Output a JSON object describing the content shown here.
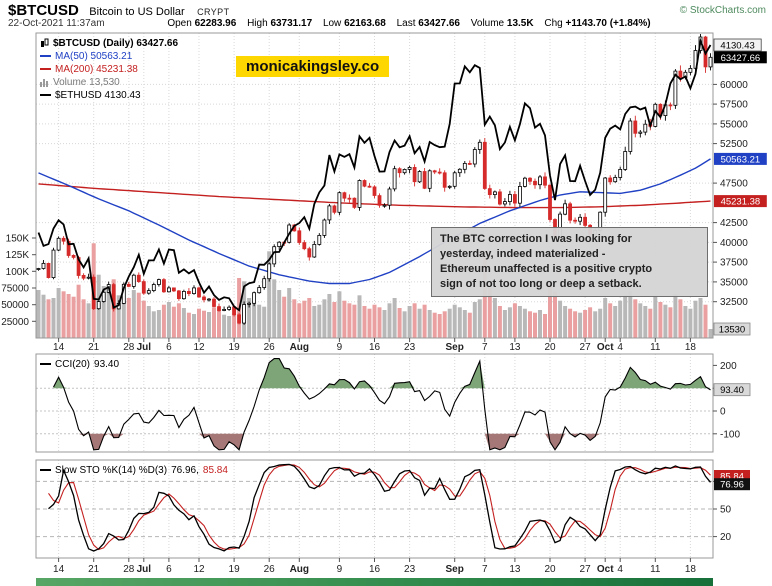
{
  "header": {
    "symbol": "$BTCUSD",
    "name": "Bitcoin to US Dollar",
    "exchange": "CRYPT",
    "copyright": "© StockCharts.com",
    "datetime": "22-Oct-2021 11:37am",
    "quote": {
      "open_label": "Open",
      "open": "62283.96",
      "high_label": "High",
      "high": "63731.17",
      "low_label": "Low",
      "low": "62163.68",
      "last_label": "Last",
      "last": "63427.66",
      "volume_label": "Volume",
      "volume": "13.5K",
      "chg_label": "Chg",
      "chg": "+1143.70 (+1.84%)"
    }
  },
  "watermark": "monicakingsley.co",
  "legend": {
    "main": [
      {
        "icon": "candlestick-icon",
        "label": "$BTCUSD (Daily) 63427.66"
      },
      {
        "icon": "line-icon",
        "label": "MA(50) 50563.21"
      },
      {
        "icon": "line-icon",
        "label": "MA(200) 45231.38"
      },
      {
        "icon": "volume-icon",
        "label": "Volume 13,530"
      },
      {
        "icon": "line-icon",
        "label": "$ETHUSD 4130.43"
      }
    ],
    "cci": {
      "label": "CCI(20)",
      "value": "93.40"
    },
    "sto": {
      "label": "Slow STO %K(14) %D(3)",
      "k": "76.96,",
      "d": "85.84"
    }
  },
  "annotation": {
    "line1": "The BTC correction I was looking for",
    "line2": "yesterday, indeed materialized -",
    "line3": "Ethereum unaffected is a positive crypto",
    "line4": "sign of not too long or deep a setback."
  },
  "chart_data": {
    "type": "candlestick",
    "title": "$BTCUSD (Daily) with MA(50), MA(200), Volume, $ETHUSD overlay, CCI(20), Slow STO %K(14) %D(3)",
    "price_axis": {
      "ticks": [
        "60000",
        "57500",
        "55000",
        "52500",
        "47500",
        "42500",
        "40000",
        "37500",
        "35000",
        "32500"
      ],
      "tick_values": [
        60000,
        57500,
        55000,
        52500,
        47500,
        42500,
        40000,
        37500,
        35000,
        32500
      ]
    },
    "volume_axis": {
      "ticks": [
        "150K",
        "125K",
        "100K",
        "75000",
        "50000",
        "25000"
      ],
      "tick_values": [
        150000,
        125000,
        100000,
        75000,
        50000,
        25000
      ]
    },
    "x_labels": [
      {
        "i": 4,
        "t": "14"
      },
      {
        "i": 11,
        "t": "21"
      },
      {
        "i": 18,
        "t": "28"
      },
      {
        "i": 21,
        "t": "Jul",
        "m": true
      },
      {
        "i": 26,
        "t": "6"
      },
      {
        "i": 32,
        "t": "12"
      },
      {
        "i": 39,
        "t": "19"
      },
      {
        "i": 46,
        "t": "26"
      },
      {
        "i": 52,
        "t": "Aug",
        "m": true
      },
      {
        "i": 60,
        "t": "9"
      },
      {
        "i": 67,
        "t": "16"
      },
      {
        "i": 74,
        "t": "23"
      },
      {
        "i": 83,
        "t": "Sep",
        "m": true
      },
      {
        "i": 89,
        "t": "7"
      },
      {
        "i": 95,
        "t": "13"
      },
      {
        "i": 102,
        "t": "20"
      },
      {
        "i": 109,
        "t": "27"
      },
      {
        "i": 113,
        "t": "Oct",
        "m": true
      },
      {
        "i": 116,
        "t": "4"
      },
      {
        "i": 123,
        "t": "11"
      },
      {
        "i": 130,
        "t": "18"
      }
    ],
    "btc_close": [
      36690,
      37338,
      35546,
      39020,
      40516,
      40144,
      38349,
      38092,
      35819,
      35470,
      35600,
      31608,
      32509,
      33678,
      34663,
      31584,
      32283,
      34700,
      34434,
      35847,
      35041,
      33572,
      33897,
      34668,
      35287,
      33746,
      34235,
      33855,
      32877,
      33798,
      33520,
      34240,
      33086,
      32729,
      32820,
      31880,
      31383,
      31520,
      31796,
      30839,
      29790,
      32144,
      32287,
      33634,
      34290,
      35400,
      37276,
      39457,
      40019,
      40016,
      42206,
      41461,
      39974,
      39201,
      38152,
      39747,
      40888,
      42836,
      44614,
      43804,
      46284,
      45594,
      45588,
      44428,
      47833,
      47112,
      47019,
      45927,
      44695,
      44705,
      46760,
      49322,
      48821,
      49239,
      49488,
      47674,
      48973,
      46843,
      49056,
      48902,
      48806,
      46976,
      47101,
      48810,
      49246,
      49999,
      49915,
      51756,
      52663,
      46811,
      46048,
      46395,
      44851,
      45161,
      46057,
      44963,
      47092,
      48130,
      47737,
      47299,
      48292,
      47240,
      42901,
      40693,
      43575,
      44888,
      42810,
      42687,
      43178,
      42157,
      41041,
      41520,
      43824,
      48155,
      47680,
      48222,
      49243,
      51505,
      55364,
      53805,
      53955,
      54955,
      54687,
      57482,
      56041,
      57401,
      57347,
      61672,
      60875,
      61528,
      62026,
      64283,
      65993,
      62212,
      63427.66
    ],
    "eth_close": [
      2472,
      2354,
      2370,
      2508,
      2581,
      2543,
      2368,
      2373,
      2234,
      2164,
      2244,
      1886,
      1880,
      1968,
      1989,
      1809,
      1830,
      1981,
      2084,
      2166,
      2275,
      2107,
      2226,
      2226,
      2322,
      2198,
      2322,
      2316,
      2116,
      2146,
      2111,
      2140,
      2031,
      1940,
      1995,
      1919,
      1877,
      1900,
      1891,
      1818,
      1786,
      1996,
      2024,
      2034,
      2189,
      2187,
      2231,
      2299,
      2301,
      2383,
      2462,
      2531,
      2556,
      2608,
      2506,
      2725,
      2827,
      2888,
      3158,
      3012,
      3163,
      3141,
      3165,
      3047,
      3323,
      3266,
      3310,
      3149,
      3011,
      3013,
      3184,
      3286,
      3226,
      3241,
      3324,
      3174,
      3229,
      3100,
      3273,
      3245,
      3227,
      3231,
      3433,
      3790,
      3791,
      3941,
      3889,
      3952,
      3928,
      3427,
      3497,
      3420,
      3210,
      3268,
      3406,
      3288,
      3430,
      3614,
      3572,
      3400,
      3434,
      3331,
      2977,
      2759,
      3077,
      3155,
      2928,
      2926,
      3062,
      2928,
      2804,
      2851,
      3001,
      3310,
      3390,
      3418,
      3384,
      3520,
      3580,
      3586,
      3560,
      3577,
      3416,
      3546,
      3493,
      3605,
      3790,
      3868,
      3827,
      3852,
      3748,
      3875,
      4167,
      4054,
      4130.43
    ],
    "volume": [
      72000,
      65000,
      58000,
      60000,
      75000,
      70000,
      66000,
      62000,
      80000,
      58000,
      52000,
      142000,
      95000,
      78000,
      70000,
      88000,
      64000,
      55000,
      60000,
      72000,
      68000,
      56000,
      48000,
      40000,
      42000,
      50000,
      54000,
      47000,
      52000,
      45000,
      38000,
      36000,
      44000,
      41000,
      39000,
      46000,
      43000,
      35000,
      33000,
      48000,
      90000,
      85000,
      60000,
      55000,
      50000,
      47000,
      130000,
      88000,
      72000,
      62000,
      75000,
      58000,
      52000,
      56000,
      60000,
      48000,
      50000,
      58000,
      66000,
      54000,
      70000,
      56000,
      52000,
      50000,
      64000,
      48000,
      44000,
      50000,
      46000,
      42000,
      52000,
      60000,
      45000,
      40000,
      48000,
      52000,
      44000,
      50000,
      42000,
      38000,
      36000,
      40000,
      44000,
      50000,
      46000,
      42000,
      38000,
      54000,
      58000,
      120000,
      75000,
      60000,
      48000,
      42000,
      46000,
      52000,
      48000,
      44000,
      40000,
      38000,
      42000,
      36000,
      82000,
      70000,
      56000,
      48000,
      44000,
      40000,
      38000,
      42000,
      46000,
      40000,
      44000,
      60000,
      52000,
      48000,
      56000,
      64000,
      70000,
      58000,
      52000,
      48000,
      44000,
      62000,
      54000,
      50000,
      46000,
      66000,
      58000,
      48000,
      44000,
      56000,
      60000,
      50000,
      13530
    ],
    "ma50_anchors": [
      [
        0,
        48800
      ],
      [
        6,
        47200
      ],
      [
        12,
        45500
      ],
      [
        18,
        44000
      ],
      [
        24,
        42200
      ],
      [
        30,
        40300
      ],
      [
        36,
        38600
      ],
      [
        42,
        37000
      ],
      [
        48,
        35900
      ],
      [
        54,
        35100
      ],
      [
        58,
        34800
      ],
      [
        62,
        34800
      ],
      [
        66,
        35300
      ],
      [
        70,
        36200
      ],
      [
        76,
        38200
      ],
      [
        82,
        40400
      ],
      [
        88,
        42400
      ],
      [
        94,
        44000
      ],
      [
        100,
        45300
      ],
      [
        104,
        46000
      ],
      [
        108,
        46400
      ],
      [
        112,
        46300
      ],
      [
        116,
        46200
      ],
      [
        120,
        46600
      ],
      [
        124,
        47400
      ],
      [
        128,
        48500
      ],
      [
        131,
        49400
      ],
      [
        134,
        50563.21
      ]
    ],
    "ma200_anchors": [
      [
        0,
        47400
      ],
      [
        12,
        46800
      ],
      [
        24,
        46300
      ],
      [
        36,
        45800
      ],
      [
        48,
        45400
      ],
      [
        60,
        45000
      ],
      [
        72,
        44700
      ],
      [
        84,
        44500
      ],
      [
        96,
        44400
      ],
      [
        104,
        44400
      ],
      [
        112,
        44500
      ],
      [
        120,
        44700
      ],
      [
        127,
        44950
      ],
      [
        134,
        45231.38
      ]
    ],
    "price_labels": {
      "eth_last": "4130.43",
      "btc_last": "63427.66",
      "ma50": "50563.21",
      "ma200": "45231.38",
      "volume_last": "13530"
    },
    "cci": {
      "period": 20,
      "last": 93.4,
      "label": "93.40",
      "ticks": [
        "200",
        "100",
        "0",
        "-100"
      ],
      "tick_values": [
        200,
        100,
        0,
        -100
      ],
      "overbought": 100,
      "oversold": -100
    },
    "sto": {
      "k_last": 76.96,
      "d_last": 85.84,
      "k_label": "76.96",
      "d_label": "85.84",
      "ticks": [
        "80",
        "50",
        "20"
      ],
      "tick_values": [
        80,
        50,
        20
      ]
    },
    "colors": {
      "up": "#000000",
      "down": "#d62b2b",
      "ma50": "#2041c4",
      "ma200": "#c42020",
      "eth": "#000000",
      "vol_up": "#b8b8b8",
      "vol_down": "#eaa0a0",
      "cci_fill_hi": "#7da577",
      "cci_fill_lo": "#a57777",
      "grid": "#d8d8d8",
      "panel_border": "#999999",
      "accent_yellow": "#ffd700"
    }
  }
}
